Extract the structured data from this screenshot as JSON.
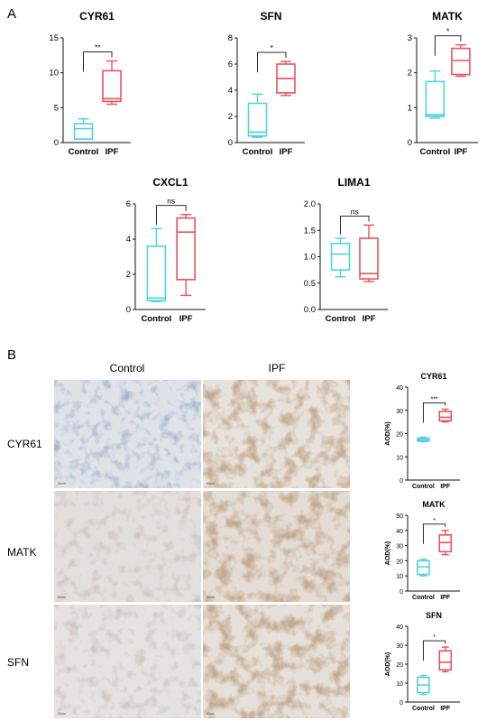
{
  "panel_a_label": "A",
  "panel_b_label": "B",
  "micrograph_columns": [
    "Control",
    "IPF"
  ],
  "micrograph_rows": [
    "CYR61",
    "MATK",
    "SFN"
  ],
  "scale_bar_label": "50um",
  "colors": {
    "control": "#4fd3dd",
    "ipf": "#e8535c"
  },
  "chart_data": [
    {
      "type": "box",
      "title": "CYR61",
      "categories": [
        "Control",
        "IPF"
      ],
      "ylim": [
        0,
        15
      ],
      "yticks": [
        0,
        5,
        10,
        15
      ],
      "boxes": [
        {
          "min": 0.5,
          "q1": 0.5,
          "median": 2.0,
          "q3": 2.7,
          "max": 3.4
        },
        {
          "min": 5.5,
          "q1": 5.9,
          "median": 6.3,
          "q3": 10.3,
          "max": 11.7
        }
      ],
      "significance": "**"
    },
    {
      "type": "box",
      "title": "SFN",
      "categories": [
        "Control",
        "IPF"
      ],
      "ylim": [
        0,
        8
      ],
      "yticks": [
        0,
        2,
        4,
        6,
        8
      ],
      "boxes": [
        {
          "min": 0.4,
          "q1": 0.5,
          "median": 0.8,
          "q3": 3.0,
          "max": 3.7
        },
        {
          "min": 3.6,
          "q1": 3.8,
          "median": 4.9,
          "q3": 6.0,
          "max": 6.2
        }
      ],
      "significance": "*"
    },
    {
      "type": "box",
      "title": "MATK",
      "categories": [
        "Control",
        "IPF"
      ],
      "ylim": [
        0,
        3
      ],
      "yticks": [
        0,
        1,
        2,
        3
      ],
      "boxes": [
        {
          "min": 0.7,
          "q1": 0.75,
          "median": 0.8,
          "q3": 1.75,
          "max": 2.05
        },
        {
          "min": 1.9,
          "q1": 1.95,
          "median": 2.35,
          "q3": 2.7,
          "max": 2.8
        }
      ],
      "significance": "*"
    },
    {
      "type": "box",
      "title": "CXCL1",
      "categories": [
        "Control",
        "IPF"
      ],
      "ylim": [
        0,
        6
      ],
      "yticks": [
        0,
        2,
        4,
        6
      ],
      "boxes": [
        {
          "min": 0.45,
          "q1": 0.5,
          "median": 0.65,
          "q3": 3.6,
          "max": 4.6
        },
        {
          "min": 0.8,
          "q1": 1.7,
          "median": 4.4,
          "q3": 5.2,
          "max": 5.4
        }
      ],
      "significance": "ns"
    },
    {
      "type": "box",
      "title": "LIMA1",
      "categories": [
        "Control",
        "IPF"
      ],
      "ylim": [
        0,
        2.0
      ],
      "yticks": [
        0.0,
        0.5,
        1.0,
        1.5,
        2.0
      ],
      "boxes": [
        {
          "min": 0.62,
          "q1": 0.75,
          "median": 1.05,
          "q3": 1.25,
          "max": 1.35
        },
        {
          "min": 0.53,
          "q1": 0.58,
          "median": 0.68,
          "q3": 1.35,
          "max": 1.6
        }
      ],
      "significance": "ns"
    },
    {
      "type": "box",
      "title": "CYR61",
      "ylabel": "AOD(%)",
      "categories": [
        "Control",
        "IPF"
      ],
      "ylim": [
        0,
        40
      ],
      "yticks": [
        0,
        10,
        20,
        30,
        40
      ],
      "boxes": [
        {
          "min": 16.5,
          "q1": 16.8,
          "median": 17.3,
          "q3": 18.0,
          "max": 18.5
        },
        {
          "min": 25.0,
          "q1": 25.5,
          "median": 27.0,
          "q3": 29.5,
          "max": 30.5
        }
      ],
      "significance": "***"
    },
    {
      "type": "box",
      "title": "MATK",
      "ylabel": "AOD(%)",
      "categories": [
        "Control",
        "IPF"
      ],
      "ylim": [
        0,
        50
      ],
      "yticks": [
        0,
        10,
        20,
        30,
        40,
        50
      ],
      "boxes": [
        {
          "min": 10,
          "q1": 11,
          "median": 16,
          "q3": 20,
          "max": 21
        },
        {
          "min": 24,
          "q1": 26,
          "median": 32,
          "q3": 37,
          "max": 40
        }
      ],
      "significance": "*"
    },
    {
      "type": "box",
      "title": "SFN",
      "ylabel": "AOD(%)",
      "categories": [
        "Control",
        "IPF"
      ],
      "ylim": [
        0,
        40
      ],
      "yticks": [
        0,
        10,
        20,
        30,
        40
      ],
      "boxes": [
        {
          "min": 4,
          "q1": 5,
          "median": 9,
          "q3": 13,
          "max": 14
        },
        {
          "min": 16,
          "q1": 17,
          "median": 21,
          "q3": 27,
          "max": 29
        }
      ],
      "significance": "*"
    }
  ]
}
